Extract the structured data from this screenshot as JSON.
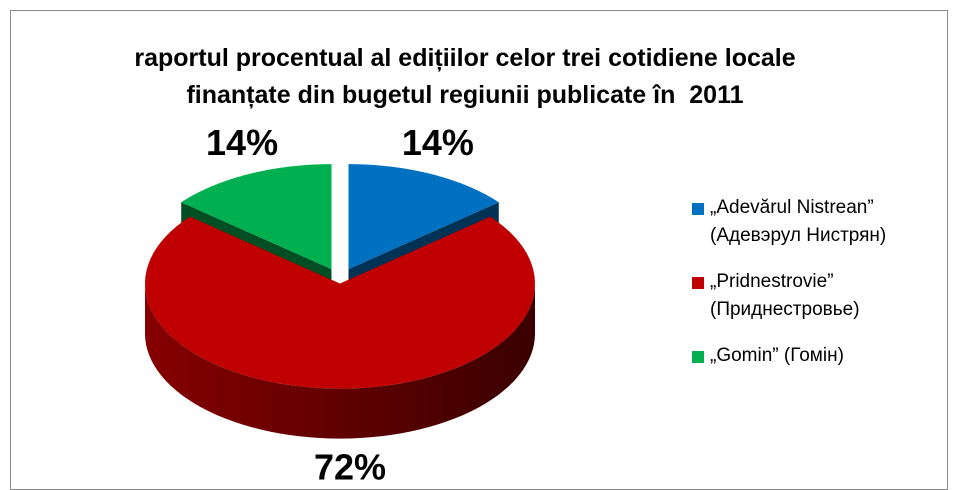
{
  "chart_data": {
    "type": "pie3d",
    "title": "raportul procentual al edițiilor celor trei cotidiene locale finanțate din bugetul regiunii publicate în  2011",
    "series": [
      {
        "name": "„Adevărul Nistrean” (Адевэрул Нистрян)",
        "color": "#0070c0"
      },
      {
        "name": "„Pridnestrovie” (Приднестровье)",
        "color": "#c00000"
      },
      {
        "name": "„Gomin” (Гомін)",
        "color": "#00b050"
      }
    ],
    "values": [
      14,
      72,
      14
    ],
    "value_labels": [
      "14%",
      "72%",
      "14%"
    ],
    "legend": "right"
  }
}
